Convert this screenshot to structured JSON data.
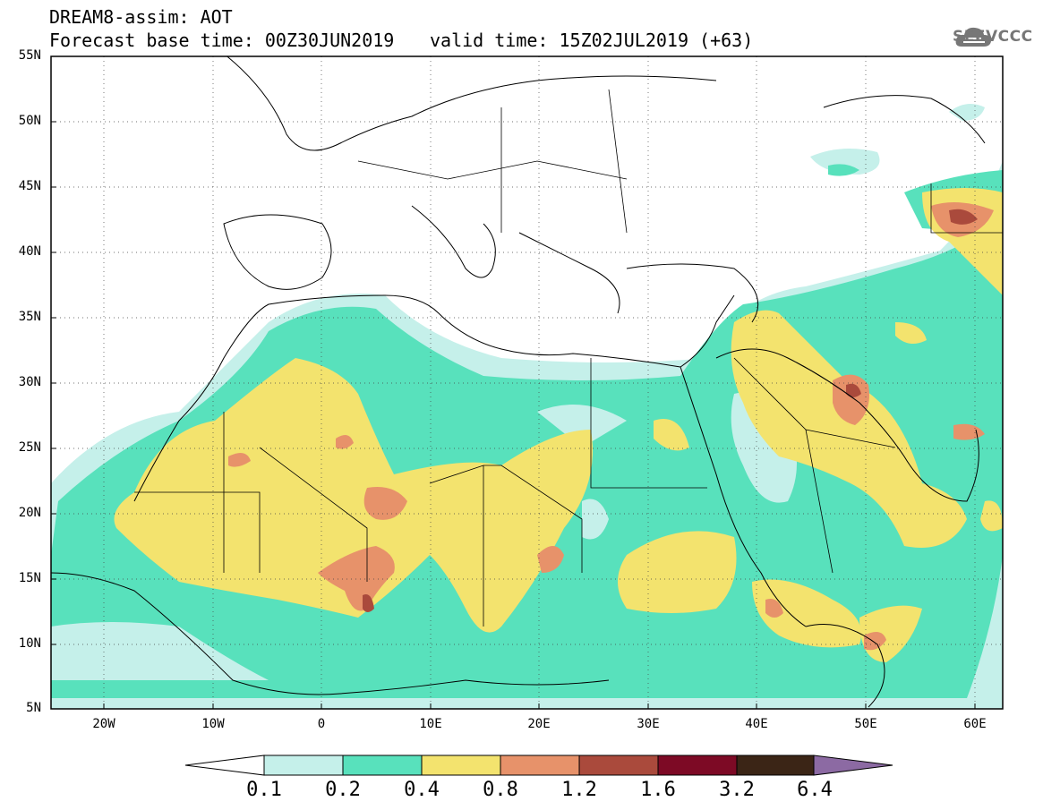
{
  "header": {
    "title": "DREAM8-assim: AOT",
    "base_time": "Forecast base time: 00Z30JUN2019",
    "valid_time": "valid time: 15Z02JUL2019 (+63)"
  },
  "logo": {
    "text": "SEEVCCC",
    "icon": "cloud-icon",
    "color": "#777777"
  },
  "map": {
    "lat_labels": [
      "55N",
      "50N",
      "45N",
      "40N",
      "35N",
      "30N",
      "25N",
      "20N",
      "15N",
      "10N",
      "5N"
    ],
    "lon_labels": [
      "20W",
      "10W",
      "0",
      "10E",
      "20E",
      "30E",
      "40E",
      "50E",
      "60E"
    ],
    "lat_range": [
      5,
      55
    ],
    "lon_range": [
      -25,
      65
    ],
    "gridlines": "dotted"
  },
  "colorbar": {
    "labels": [
      "0.1",
      "0.2",
      "0.4",
      "0.8",
      "1.2",
      "1.6",
      "3.2",
      "6.4"
    ],
    "colors": [
      "#ffffff",
      "#c5f0ea",
      "#58e1bc",
      "#f3e36e",
      "#e7926a",
      "#aa4a3c",
      "#7d0a25",
      "#3b2516",
      "#8c6aa3"
    ]
  }
}
